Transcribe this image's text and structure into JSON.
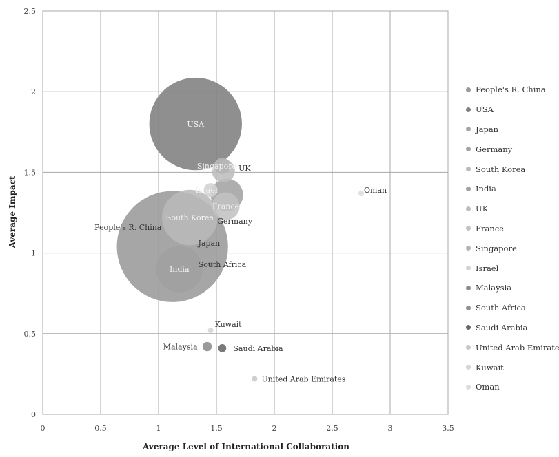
{
  "chart_data": {
    "type": "scatter",
    "subtype": "bubble",
    "xlabel": "Average Level of International Collaboration",
    "ylabel": "Average Impact",
    "xlim": [
      0,
      3.5
    ],
    "ylim": [
      0,
      2.5
    ],
    "xticks": [
      "0",
      "0.5",
      "1",
      "1.5",
      "2",
      "2.5",
      "3",
      "3.5"
    ],
    "yticks": [
      "0",
      "0.5",
      "1",
      "1.5",
      "2",
      "2.5"
    ],
    "grid": true,
    "legend_position": "right",
    "series": [
      {
        "name": "People's R. China",
        "x": 1.12,
        "y": 1.04,
        "size": 0.48,
        "color": "#9a9a9a"
      },
      {
        "name": "USA",
        "x": 1.32,
        "y": 1.8,
        "size": 0.4,
        "color": "#808080"
      },
      {
        "name": "Japan",
        "x": 1.42,
        "y": 1.02,
        "size": 0.08,
        "color": "#a5a5a5"
      },
      {
        "name": "Germany",
        "x": 1.59,
        "y": 1.36,
        "size": 0.14,
        "color": "#a3a3a3"
      },
      {
        "name": "South Korea",
        "x": 1.27,
        "y": 1.22,
        "size": 0.24,
        "color": "#b9b9b9"
      },
      {
        "name": "India",
        "x": 1.18,
        "y": 0.9,
        "size": 0.2,
        "color": "#a0a0a0"
      },
      {
        "name": "UK",
        "x": 1.56,
        "y": 1.51,
        "size": 0.1,
        "color": "#bdbdbd"
      },
      {
        "name": "France",
        "x": 1.58,
        "y": 1.29,
        "size": 0.12,
        "color": "#c2c2c2"
      },
      {
        "name": "Singapore",
        "x": 1.55,
        "y": 1.54,
        "size": 0.07,
        "color": "#b4b4b4"
      },
      {
        "name": "Israel",
        "x": 1.45,
        "y": 1.39,
        "size": 0.06,
        "color": "#d2d2d2"
      },
      {
        "name": "Malaysia",
        "x": 1.42,
        "y": 0.42,
        "size": 0.04,
        "color": "#8c8c8c"
      },
      {
        "name": "South Africa",
        "x": 1.45,
        "y": 0.93,
        "size": 0.02,
        "color": "#909090"
      },
      {
        "name": "Saudi Arabia",
        "x": 1.55,
        "y": 0.41,
        "size": 0.035,
        "color": "#686868"
      },
      {
        "name": "United Arab Emirates",
        "x": 1.83,
        "y": 0.22,
        "size": 0.02,
        "color": "#c8c8c8"
      },
      {
        "name": "Kuwait",
        "x": 1.45,
        "y": 0.52,
        "size": 0.015,
        "color": "#d5d5d5"
      },
      {
        "name": "Oman",
        "x": 2.75,
        "y": 1.37,
        "size": 0.01,
        "color": "#dcdcdc"
      }
    ],
    "point_labels": [
      {
        "text": "USA",
        "series": "USA"
      },
      {
        "text": "Singapore",
        "series": "Singapore"
      },
      {
        "text": "UK",
        "series": "UK"
      },
      {
        "text": "Israel",
        "series": "Israel"
      },
      {
        "text": "France",
        "series": "France"
      },
      {
        "text": "Germany",
        "series": "Germany"
      },
      {
        "text": "South Korea",
        "series": "South Korea"
      },
      {
        "text": "People's R. China",
        "series": "People's R. China"
      },
      {
        "text": "Japan",
        "series": "Japan"
      },
      {
        "text": "South Africa",
        "series": "South Africa"
      },
      {
        "text": "India",
        "series": "India"
      },
      {
        "text": "Kuwait",
        "series": "Kuwait"
      },
      {
        "text": "Malaysia",
        "series": "Malaysia"
      },
      {
        "text": "Saudi Arabia",
        "series": "Saudi Arabia"
      },
      {
        "text": "United Arab Emirates",
        "series": "United Arab Emirates"
      },
      {
        "text": "Oman",
        "series": "Oman"
      }
    ]
  }
}
